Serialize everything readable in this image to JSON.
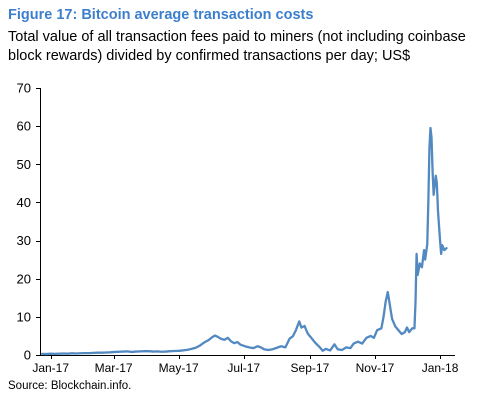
{
  "chart_data": {
    "type": "line",
    "title": "Figure 17: Bitcoin average transaction costs",
    "subtitle": "Total value of all transaction fees paid to miners (not including coinbase block rewards) divided by confirmed transactions per day; US$",
    "source": "Source: Blockchain.info.",
    "xlim": [
      "2016-12-22",
      "2018-01-15"
    ],
    "ylim": [
      0,
      70
    ],
    "y_ticks": [
      0,
      10,
      20,
      30,
      40,
      50,
      60,
      70
    ],
    "x_tick_labels": [
      "Jan-17",
      "Mar-17",
      "May-17",
      "Jul-17",
      "Sep-17",
      "Nov-17",
      "Jan-18"
    ],
    "grid": false,
    "legend": false,
    "colors": {
      "title": "#3d7fcc",
      "line": "#5289c0",
      "axis": "#000000"
    },
    "x": [
      "2016-12-24",
      "2016-12-28",
      "2017-01-01",
      "2017-01-05",
      "2017-01-09",
      "2017-01-13",
      "2017-01-17",
      "2017-01-21",
      "2017-01-25",
      "2017-01-29",
      "2017-02-02",
      "2017-02-06",
      "2017-02-10",
      "2017-02-14",
      "2017-02-18",
      "2017-02-22",
      "2017-02-26",
      "2017-03-02",
      "2017-03-06",
      "2017-03-10",
      "2017-03-14",
      "2017-03-18",
      "2017-03-22",
      "2017-03-26",
      "2017-03-30",
      "2017-04-03",
      "2017-04-07",
      "2017-04-11",
      "2017-04-15",
      "2017-04-19",
      "2017-04-23",
      "2017-04-27",
      "2017-05-01",
      "2017-05-05",
      "2017-05-09",
      "2017-05-13",
      "2017-05-17",
      "2017-05-21",
      "2017-05-25",
      "2017-05-29",
      "2017-06-01",
      "2017-06-04",
      "2017-06-07",
      "2017-06-10",
      "2017-06-13",
      "2017-06-16",
      "2017-06-19",
      "2017-06-22",
      "2017-06-25",
      "2017-06-28",
      "2017-07-02",
      "2017-07-06",
      "2017-07-10",
      "2017-07-14",
      "2017-07-17",
      "2017-07-20",
      "2017-07-24",
      "2017-07-28",
      "2017-08-01",
      "2017-08-05",
      "2017-08-09",
      "2017-08-13",
      "2017-08-16",
      "2017-08-19",
      "2017-08-22",
      "2017-08-24",
      "2017-08-27",
      "2017-08-30",
      "2017-09-02",
      "2017-09-06",
      "2017-09-10",
      "2017-09-13",
      "2017-09-16",
      "2017-09-20",
      "2017-09-24",
      "2017-09-27",
      "2017-10-01",
      "2017-10-05",
      "2017-10-09",
      "2017-10-12",
      "2017-10-16",
      "2017-10-20",
      "2017-10-24",
      "2017-10-28",
      "2017-10-31",
      "2017-11-03",
      "2017-11-07",
      "2017-11-09",
      "2017-11-11",
      "2017-11-13",
      "2017-11-15",
      "2017-11-17",
      "2017-11-20",
      "2017-11-23",
      "2017-11-26",
      "2017-11-29",
      "2017-12-01",
      "2017-12-03",
      "2017-12-06",
      "2017-12-08",
      "2017-12-09",
      "2017-12-10",
      "2017-12-11",
      "2017-12-13",
      "2017-12-15",
      "2017-12-17",
      "2017-12-18",
      "2017-12-20",
      "2017-12-21",
      "2017-12-22",
      "2017-12-23",
      "2017-12-24",
      "2017-12-25",
      "2017-12-26",
      "2017-12-28",
      "2017-12-29",
      "2017-12-30",
      "2018-01-01",
      "2018-01-02",
      "2018-01-03",
      "2018-01-05",
      "2018-01-07"
    ],
    "series": [
      {
        "values": [
          0.3,
          0.25,
          0.35,
          0.3,
          0.35,
          0.4,
          0.35,
          0.45,
          0.4,
          0.45,
          0.5,
          0.5,
          0.55,
          0.6,
          0.6,
          0.65,
          0.7,
          0.8,
          0.85,
          0.9,
          0.95,
          0.8,
          0.9,
          0.95,
          1.0,
          1.0,
          0.9,
          0.95,
          0.85,
          0.9,
          1.0,
          1.05,
          1.1,
          1.2,
          1.35,
          1.6,
          1.9,
          2.5,
          3.3,
          3.9,
          4.6,
          5.1,
          4.7,
          4.2,
          4.0,
          4.5,
          3.6,
          3.1,
          3.4,
          2.7,
          2.3,
          2.0,
          1.8,
          2.3,
          2.0,
          1.5,
          1.3,
          1.5,
          1.9,
          2.3,
          2.0,
          4.3,
          4.9,
          6.6,
          8.8,
          7.2,
          7.6,
          5.6,
          4.6,
          3.2,
          2.1,
          1.1,
          1.6,
          1.2,
          2.8,
          1.5,
          1.3,
          2.0,
          1.8,
          3.0,
          3.5,
          3.0,
          4.5,
          5.0,
          4.5,
          6.5,
          7.0,
          10.0,
          14.0,
          16.5,
          13.0,
          9.5,
          7.5,
          6.5,
          5.5,
          6.0,
          7.2,
          6.0,
          7.0,
          7.0,
          14.0,
          26.5,
          21.0,
          24.0,
          23.0,
          27.5,
          25.0,
          29.0,
          40.0,
          54.0,
          59.5,
          57.0,
          48.0,
          42.0,
          47.0,
          45.0,
          38.0,
          30.0,
          26.5,
          28.8,
          27.5,
          28.0
        ]
      }
    ]
  }
}
